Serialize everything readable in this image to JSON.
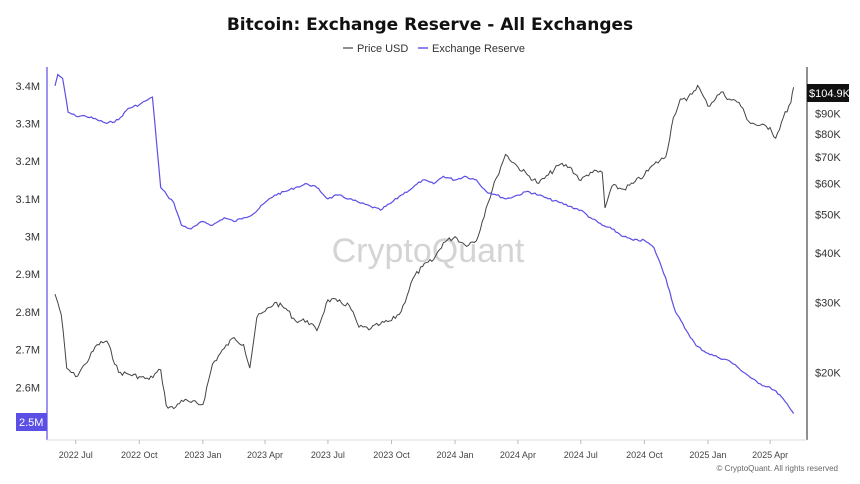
{
  "chart_data": {
    "type": "line",
    "title": "Bitcoin: Exchange Reserve - All Exchanges",
    "legend": [
      {
        "name": "Price USD",
        "color": "#444444"
      },
      {
        "name": "Exchange Reserve",
        "color": "#5b4fe6"
      }
    ],
    "legend_position": "top-center",
    "watermark": "CryptoQuant",
    "copyright": "© CryptoQuant. All rights reserved",
    "x_ticks": [
      "2022 Jul",
      "2022 Oct",
      "2023 Jan",
      "2023 Apr",
      "2023 Jul",
      "2023 Oct",
      "2024 Jan",
      "2024 Apr",
      "2024 Jul",
      "2024 Oct",
      "2025 Jan",
      "2025 Apr"
    ],
    "y_left": {
      "ticks": [
        "3.4M",
        "3.3M",
        "3.2M",
        "3.1M",
        "3M",
        "2.9M",
        "2.8M",
        "2.7M",
        "2.6M",
        "2.5M"
      ],
      "range": [
        2.46,
        3.45
      ],
      "unit": "BTC"
    },
    "y_right": {
      "ticks": [
        "$100K",
        "$90K",
        "$80K",
        "$70K",
        "$60K",
        "$50K",
        "$40K",
        "$30K",
        "$20K"
      ],
      "scale": "log"
    },
    "current_labels": {
      "price": "$104.9K",
      "reserve": "2.5M"
    },
    "grid": false,
    "series": [
      {
        "name": "Exchange Reserve",
        "color": "#5b4fe6",
        "axis": "left",
        "x": [
          "2022-06-01",
          "2022-06-05",
          "2022-06-12",
          "2022-06-20",
          "2022-07-01",
          "2022-07-15",
          "2022-08-01",
          "2022-08-15",
          "2022-09-01",
          "2022-09-15",
          "2022-10-01",
          "2022-10-10",
          "2022-10-20",
          "2022-11-01",
          "2022-11-10",
          "2022-11-20",
          "2022-12-01",
          "2022-12-15",
          "2023-01-01",
          "2023-01-15",
          "2023-02-01",
          "2023-02-15",
          "2023-03-01",
          "2023-03-15",
          "2023-04-01",
          "2023-04-15",
          "2023-05-01",
          "2023-05-15",
          "2023-06-01",
          "2023-06-15",
          "2023-07-01",
          "2023-07-15",
          "2023-08-01",
          "2023-08-15",
          "2023-09-01",
          "2023-09-15",
          "2023-10-01",
          "2023-10-15",
          "2023-11-01",
          "2023-11-15",
          "2023-12-01",
          "2023-12-15",
          "2024-01-01",
          "2024-01-15",
          "2024-02-01",
          "2024-02-15",
          "2024-03-01",
          "2024-03-15",
          "2024-04-01",
          "2024-04-15",
          "2024-05-01",
          "2024-05-15",
          "2024-06-01",
          "2024-06-15",
          "2024-07-01",
          "2024-07-15",
          "2024-08-01",
          "2024-08-15",
          "2024-09-01",
          "2024-09-15",
          "2024-10-01",
          "2024-10-15",
          "2024-11-01",
          "2024-11-15",
          "2024-12-01",
          "2024-12-15",
          "2025-01-01",
          "2025-01-15",
          "2025-02-01",
          "2025-02-15",
          "2025-03-01",
          "2025-03-15",
          "2025-04-01",
          "2025-04-15",
          "2025-05-01",
          "2025-05-05"
        ],
        "values": [
          3.4,
          3.43,
          3.42,
          3.33,
          3.32,
          3.32,
          3.31,
          3.3,
          3.31,
          3.34,
          3.35,
          3.36,
          3.37,
          3.13,
          3.11,
          3.09,
          3.03,
          3.02,
          3.04,
          3.03,
          3.05,
          3.04,
          3.05,
          3.06,
          3.09,
          3.11,
          3.12,
          3.13,
          3.14,
          3.13,
          3.1,
          3.11,
          3.1,
          3.09,
          3.08,
          3.07,
          3.09,
          3.11,
          3.13,
          3.15,
          3.14,
          3.16,
          3.15,
          3.16,
          3.15,
          3.12,
          3.11,
          3.1,
          3.11,
          3.12,
          3.11,
          3.1,
          3.09,
          3.08,
          3.07,
          3.05,
          3.03,
          3.02,
          3.0,
          2.99,
          2.99,
          2.97,
          2.89,
          2.8,
          2.75,
          2.71,
          2.69,
          2.68,
          2.67,
          2.65,
          2.63,
          2.61,
          2.6,
          2.58,
          2.54,
          2.53
        ]
      },
      {
        "name": "Price USD",
        "color": "#444444",
        "axis": "right",
        "x": [
          "2022-06-01",
          "2022-06-05",
          "2022-06-10",
          "2022-06-18",
          "2022-07-01",
          "2022-07-15",
          "2022-08-01",
          "2022-08-15",
          "2022-09-01",
          "2022-09-15",
          "2022-10-01",
          "2022-10-15",
          "2022-11-01",
          "2022-11-09",
          "2022-11-20",
          "2022-12-01",
          "2022-12-15",
          "2023-01-01",
          "2023-01-15",
          "2023-02-01",
          "2023-02-15",
          "2023-03-01",
          "2023-03-10",
          "2023-03-20",
          "2023-04-01",
          "2023-04-15",
          "2023-05-01",
          "2023-05-15",
          "2023-06-01",
          "2023-06-15",
          "2023-07-01",
          "2023-07-15",
          "2023-08-01",
          "2023-08-15",
          "2023-09-01",
          "2023-09-15",
          "2023-10-01",
          "2023-10-15",
          "2023-11-01",
          "2023-11-15",
          "2023-12-01",
          "2023-12-15",
          "2024-01-01",
          "2024-01-15",
          "2024-02-01",
          "2024-02-15",
          "2024-03-01",
          "2024-03-14",
          "2024-04-01",
          "2024-04-15",
          "2024-05-01",
          "2024-05-15",
          "2024-06-01",
          "2024-06-15",
          "2024-07-01",
          "2024-07-15",
          "2024-08-01",
          "2024-08-05",
          "2024-08-15",
          "2024-09-01",
          "2024-09-15",
          "2024-10-01",
          "2024-10-15",
          "2024-11-01",
          "2024-11-12",
          "2024-11-22",
          "2024-12-01",
          "2024-12-17",
          "2025-01-01",
          "2025-01-20",
          "2025-02-01",
          "2025-02-15",
          "2025-03-01",
          "2025-03-15",
          "2025-04-01",
          "2025-04-09",
          "2025-04-20",
          "2025-05-01",
          "2025-05-05"
        ],
        "values": [
          31500,
          30000,
          28000,
          20500,
          19500,
          21000,
          23500,
          24000,
          20000,
          19800,
          19500,
          19200,
          20300,
          16500,
          16200,
          17000,
          16800,
          16600,
          21000,
          23000,
          24500,
          23500,
          20500,
          27500,
          28500,
          30000,
          29000,
          27000,
          27000,
          25500,
          30500,
          30200,
          29500,
          26000,
          25800,
          26500,
          27000,
          28500,
          34500,
          37000,
          38500,
          42500,
          44000,
          42000,
          43000,
          52000,
          62000,
          71000,
          66000,
          63000,
          60000,
          63000,
          67000,
          66000,
          61000,
          64000,
          64000,
          52000,
          59000,
          58000,
          60000,
          63000,
          67000,
          70000,
          88000,
          98000,
          97000,
          106000,
          94000,
          102000,
          98000,
          96000,
          86000,
          84000,
          83000,
          78000,
          88000,
          96000,
          104900
        ]
      }
    ]
  }
}
